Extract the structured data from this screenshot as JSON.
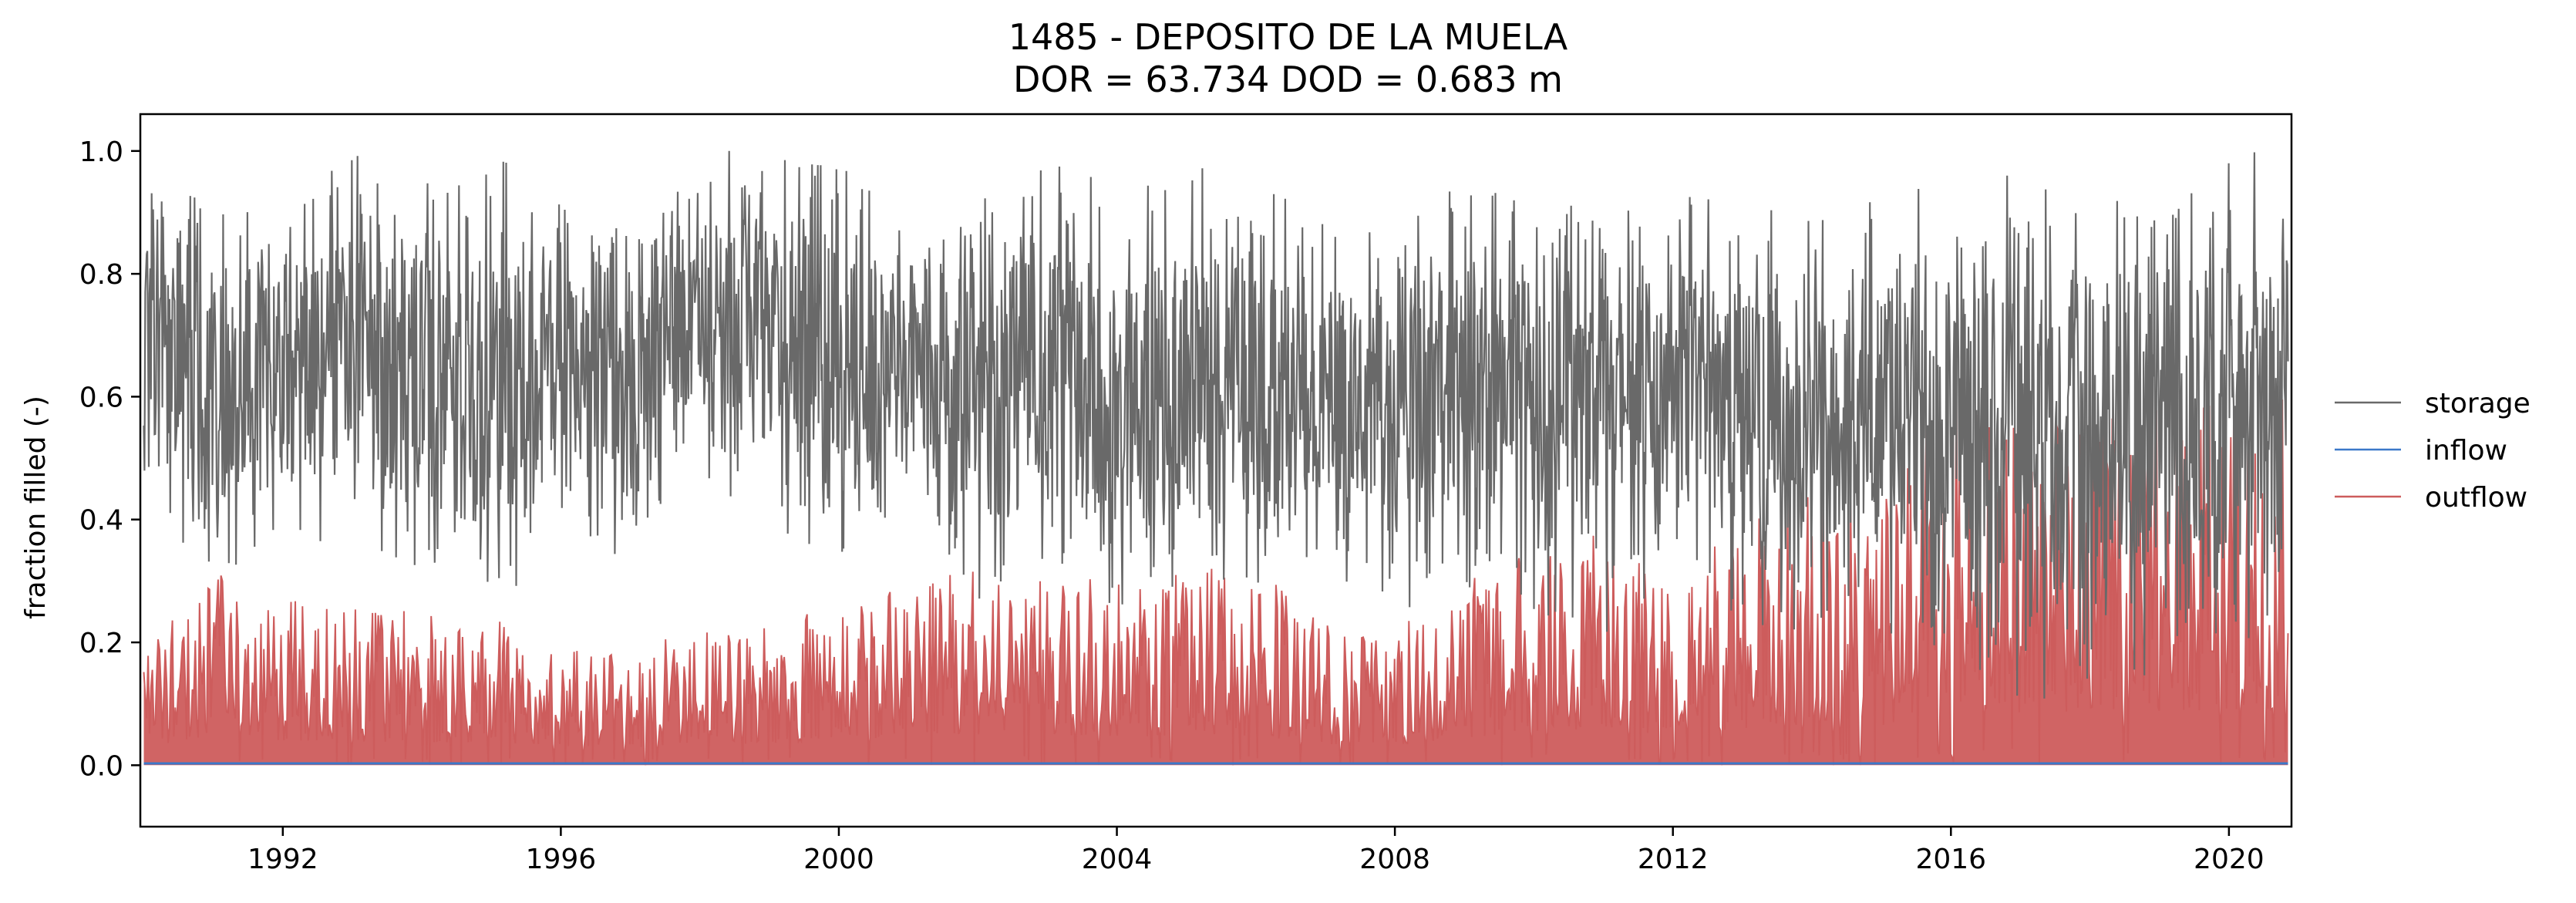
{
  "chart_data": {
    "type": "line",
    "title": "1485 - DEPOSITO DE LA MUELA",
    "subtitle": "DOR = 63.734  DOD = 0.683 m",
    "xlabel": "",
    "ylabel": "fraction filled (-)",
    "xlim": [
      1989.95,
      2020.9
    ],
    "ylim": [
      -0.1,
      1.06
    ],
    "x_ticks": [
      "1992",
      "1996",
      "2000",
      "2004",
      "2008",
      "2012",
      "2016",
      "2020"
    ],
    "y_ticks": [
      "0.0",
      "0.2",
      "0.4",
      "0.6",
      "0.8",
      "1.0"
    ],
    "grid": false,
    "legend_position": "right",
    "x_years": [
      1990,
      1991,
      1992,
      1993,
      1994,
      1995,
      1996,
      1997,
      1998,
      1999,
      2000,
      2001,
      2002,
      2003,
      2004,
      2005,
      2006,
      2007,
      2008,
      2009,
      2010,
      2011,
      2012,
      2013,
      2014,
      2015,
      2016,
      2017,
      2018,
      2019,
      2020
    ],
    "series": [
      {
        "name": "storage",
        "color": "#696969",
        "annual_max": [
          0.95,
          0.92,
          0.95,
          1.0,
          0.95,
          1.0,
          0.92,
          0.87,
          1.0,
          1.01,
          0.98,
          0.88,
          0.92,
          0.98,
          0.95,
          0.98,
          0.96,
          0.88,
          0.88,
          0.95,
          0.92,
          0.92,
          0.95,
          0.92,
          0.9,
          0.93,
          0.95,
          0.97,
          0.92,
          0.92,
          1.0
        ],
        "annual_min": [
          0.45,
          0.28,
          0.38,
          0.35,
          0.3,
          0.22,
          0.42,
          0.3,
          0.45,
          0.38,
          0.3,
          0.45,
          0.25,
          0.3,
          0.25,
          0.28,
          0.25,
          0.32,
          0.25,
          0.28,
          0.25,
          0.18,
          0.33,
          0.2,
          0.22,
          0.22,
          0.18,
          0.1,
          0.12,
          0.15,
          0.2
        ]
      },
      {
        "name": "inflow",
        "color": "#3b78c9",
        "annual_max": [
          0.01,
          0.01,
          0.01,
          0.01,
          0.01,
          0.01,
          0.01,
          0.01,
          0.01,
          0.01,
          0.01,
          0.01,
          0.01,
          0.01,
          0.01,
          0.01,
          0.01,
          0.01,
          0.01,
          0.01,
          0.01,
          0.01,
          0.01,
          0.01,
          0.01,
          0.01,
          0.01,
          0.01,
          0.01,
          0.01,
          0.01
        ]
      },
      {
        "name": "outflow",
        "color": "#cd5c5c",
        "annual_max": [
          0.2,
          0.32,
          0.27,
          0.26,
          0.25,
          0.25,
          0.2,
          0.19,
          0.22,
          0.24,
          0.28,
          0.3,
          0.33,
          0.32,
          0.3,
          0.33,
          0.32,
          0.23,
          0.22,
          0.3,
          0.35,
          0.38,
          0.3,
          0.4,
          0.45,
          0.42,
          0.65,
          0.55,
          0.6,
          0.58,
          0.6
        ]
      }
    ]
  }
}
